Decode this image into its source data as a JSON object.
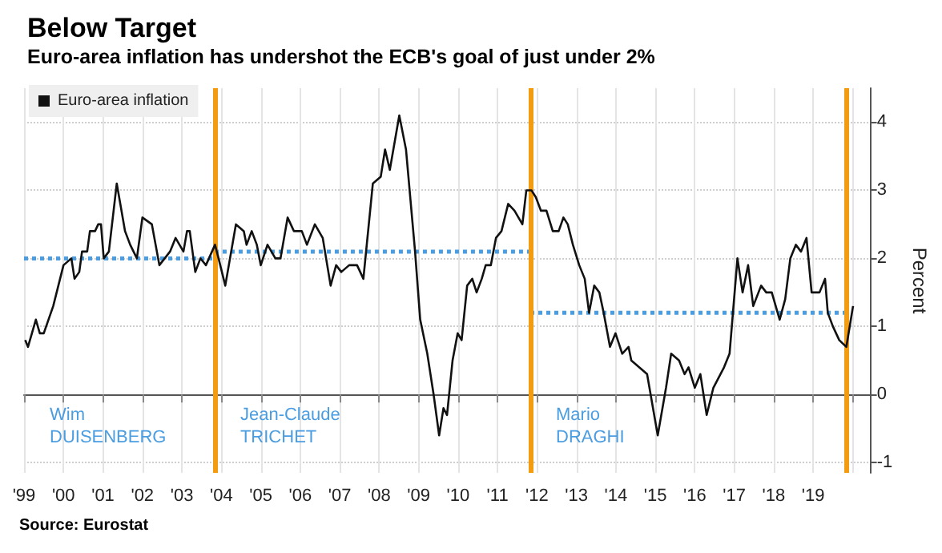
{
  "chart_data": {
    "type": "line",
    "title": "Below Target",
    "subtitle": "Euro-area inflation has undershot the ECB's goal of just under 2%",
    "ylabel": "Percent",
    "xlim": [
      1999,
      2020.45
    ],
    "ylim": [
      -1.15,
      4.5
    ],
    "yticks": [
      -1,
      0,
      1,
      2,
      3,
      4
    ],
    "xticks": [
      {
        "value": 1999,
        "label": "'99"
      },
      {
        "value": 2000,
        "label": "'00"
      },
      {
        "value": 2001,
        "label": "'01"
      },
      {
        "value": 2002,
        "label": "'02"
      },
      {
        "value": 2003,
        "label": "'03"
      },
      {
        "value": 2004,
        "label": "'04"
      },
      {
        "value": 2005,
        "label": "'05"
      },
      {
        "value": 2006,
        "label": "'06"
      },
      {
        "value": 2007,
        "label": "'07"
      },
      {
        "value": 2008,
        "label": "'08"
      },
      {
        "value": 2009,
        "label": "'09"
      },
      {
        "value": 2010,
        "label": "'10"
      },
      {
        "value": 2011,
        "label": "'11"
      },
      {
        "value": 2012,
        "label": "'12"
      },
      {
        "value": 2013,
        "label": "'13"
      },
      {
        "value": 2014,
        "label": "'14"
      },
      {
        "value": 2015,
        "label": "'15"
      },
      {
        "value": 2016,
        "label": "'16"
      },
      {
        "value": 2017,
        "label": "'17"
      },
      {
        "value": 2018,
        "label": "'18"
      },
      {
        "value": 2019,
        "label": "'19"
      },
      {
        "value": 2020,
        "label": null
      }
    ],
    "grid": true,
    "legend": "top left",
    "marker": "none",
    "series": [
      {
        "name": "Euro-area inflation",
        "color": "#111111",
        "line_style": "solid",
        "x": [
          1999.03,
          1999.1,
          1999.3,
          1999.4,
          1999.5,
          1999.74,
          2000.0,
          2000.2,
          2000.28,
          2000.4,
          2000.47,
          2000.6,
          2000.67,
          2000.8,
          2000.88,
          2000.95,
          2001.02,
          2001.15,
          2001.35,
          2001.56,
          2001.69,
          2001.86,
          2002.0,
          2002.24,
          2002.43,
          2002.7,
          2002.84,
          2003.04,
          2003.13,
          2003.2,
          2003.34,
          2003.47,
          2003.61,
          2003.84,
          2003.93,
          2004.1,
          2004.37,
          2004.57,
          2004.64,
          2004.77,
          2004.9,
          2005.0,
          2005.17,
          2005.37,
          2005.5,
          2005.68,
          2005.84,
          2006.04,
          2006.17,
          2006.37,
          2006.57,
          2006.77,
          2006.91,
          2007.04,
          2007.24,
          2007.44,
          2007.6,
          2007.84,
          2008.04,
          2008.15,
          2008.27,
          2008.51,
          2008.68,
          2008.91,
          2009.04,
          2009.22,
          2009.38,
          2009.52,
          2009.63,
          2009.72,
          2009.86,
          2009.99,
          2010.09,
          2010.23,
          2010.36,
          2010.47,
          2010.6,
          2010.7,
          2010.83,
          2010.96,
          2011.1,
          2011.27,
          2011.43,
          2011.63,
          2011.73,
          2011.86,
          2011.97,
          2012.1,
          2012.24,
          2012.4,
          2012.55,
          2012.67,
          2012.78,
          2012.91,
          2013.07,
          2013.21,
          2013.32,
          2013.45,
          2013.58,
          2013.69,
          2013.85,
          2013.99,
          2014.16,
          2014.32,
          2014.39,
          2014.59,
          2014.79,
          2015.06,
          2015.27,
          2015.4,
          2015.6,
          2015.74,
          2015.84,
          2016.0,
          2016.14,
          2016.3,
          2016.47,
          2016.74,
          2016.88,
          2017.08,
          2017.21,
          2017.35,
          2017.48,
          2017.68,
          2017.81,
          2017.95,
          2018.15,
          2018.29,
          2018.42,
          2018.56,
          2018.69,
          2018.83,
          2018.96,
          2019.16,
          2019.3,
          2019.37,
          2019.5,
          2019.66,
          2019.84,
          2020.01
        ],
        "values": [
          0.8,
          0.7,
          1.1,
          0.9,
          0.9,
          1.3,
          1.9,
          2.0,
          1.7,
          1.8,
          2.1,
          2.1,
          2.4,
          2.4,
          2.5,
          2.5,
          2.0,
          2.1,
          3.1,
          2.4,
          2.2,
          2.0,
          2.6,
          2.5,
          1.9,
          2.1,
          2.3,
          2.1,
          2.4,
          2.4,
          1.8,
          2.0,
          1.9,
          2.2,
          2.0,
          1.6,
          2.5,
          2.4,
          2.2,
          2.4,
          2.2,
          1.9,
          2.2,
          2.0,
          2.0,
          2.6,
          2.4,
          2.4,
          2.2,
          2.5,
          2.3,
          1.6,
          1.9,
          1.8,
          1.9,
          1.9,
          1.7,
          3.1,
          3.2,
          3.6,
          3.3,
          4.1,
          3.6,
          2.1,
          1.1,
          0.6,
          0.0,
          -0.6,
          -0.2,
          -0.3,
          0.5,
          0.9,
          0.8,
          1.6,
          1.7,
          1.5,
          1.7,
          1.9,
          1.9,
          2.3,
          2.4,
          2.8,
          2.7,
          2.5,
          3.0,
          3.0,
          2.9,
          2.7,
          2.7,
          2.4,
          2.4,
          2.6,
          2.5,
          2.2,
          1.9,
          1.7,
          1.2,
          1.6,
          1.5,
          1.2,
          0.7,
          0.9,
          0.6,
          0.7,
          0.5,
          0.4,
          0.3,
          -0.6,
          0.1,
          0.6,
          0.5,
          0.3,
          0.4,
          0.1,
          0.3,
          -0.3,
          0.1,
          0.4,
          0.6,
          2.0,
          1.5,
          1.9,
          1.3,
          1.6,
          1.5,
          1.5,
          1.1,
          1.4,
          2.0,
          2.2,
          2.1,
          2.3,
          1.5,
          1.5,
          1.7,
          1.2,
          1.0,
          0.8,
          0.7,
          1.3
        ]
      },
      {
        "color": "#4a9de0",
        "line_style": "dotted",
        "x": [
          1999.0,
          2003.83
        ],
        "values": [
          2.0,
          2.0
        ]
      },
      {
        "color": "#4a9de0",
        "line_style": "dotted",
        "x": [
          2003.83,
          2011.83
        ],
        "values": [
          2.1,
          2.1
        ]
      },
      {
        "color": "#4a9de0",
        "line_style": "dotted",
        "x": [
          2011.83,
          2019.83
        ],
        "values": [
          1.2,
          1.2
        ]
      }
    ],
    "ref_lines": [
      {
        "axis": "x",
        "value": 2003.83,
        "color": "#f39c12"
      },
      {
        "axis": "x",
        "value": 2011.83,
        "color": "#f39c12"
      },
      {
        "axis": "x",
        "value": 2019.83,
        "color": "#f39c12"
      }
    ],
    "annotations": [
      "Wim\nDUISENBERG",
      "Jean-Claude\nTRICHET",
      "Mario\nDRAGHI",
      "Source: Eurostat"
    ]
  }
}
